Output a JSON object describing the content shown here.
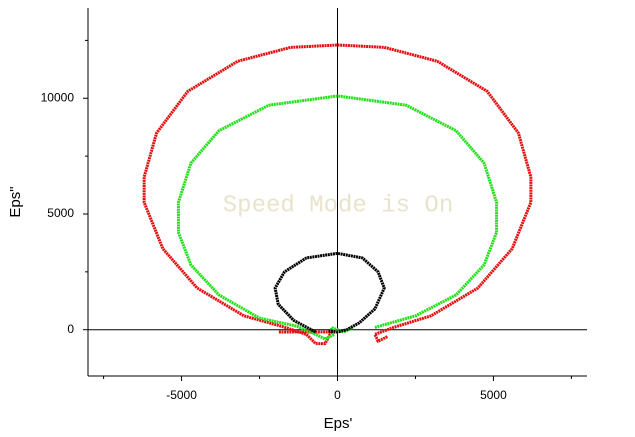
{
  "chart_data": {
    "type": "line",
    "x_label": "Eps'",
    "y_label": "Eps\"",
    "watermark": "Speed Mode is On",
    "xlim": [
      -8000,
      8000
    ],
    "ylim": [
      -2000,
      13900
    ],
    "xticks": [
      -5000,
      0,
      5000
    ],
    "yticks": [
      0,
      5000,
      10000
    ],
    "xminorticks": [
      -7500,
      -2500,
      2500,
      7500
    ],
    "yminorticks": [
      2500,
      7500,
      12500
    ],
    "series": [
      {
        "color": "#e41010",
        "x": [
          1600,
          1300,
          1200,
          1800,
          3000,
          4500,
          5600,
          6200,
          6200,
          5800,
          4800,
          3200,
          1500,
          0,
          -1500,
          -3200,
          -4800,
          -5800,
          -6200,
          -6200,
          -5600,
          -4500,
          -3000,
          -1800,
          -1000,
          -700,
          -400,
          -200,
          -1900
        ],
        "values": [
          -300,
          -500,
          -200,
          100,
          600,
          1800,
          3500,
          5500,
          6600,
          8500,
          10300,
          11600,
          12200,
          12300,
          12200,
          11600,
          10300,
          8500,
          6600,
          5500,
          3500,
          1800,
          600,
          150,
          -200,
          -600,
          -600,
          -100,
          -100
        ]
      },
      {
        "color": "#22e01a",
        "x": [
          1200,
          2500,
          3800,
          4700,
          5100,
          5100,
          4700,
          3800,
          2200,
          0,
          -2200,
          -3800,
          -4700,
          -5100,
          -5100,
          -4700,
          -3800,
          -2500,
          -1300,
          -700,
          -400,
          -100,
          -200,
          200,
          500
        ],
        "values": [
          100,
          600,
          1500,
          2800,
          4200,
          5500,
          7200,
          8600,
          9700,
          10100,
          9700,
          8600,
          7200,
          5500,
          4200,
          2800,
          1500,
          500,
          150,
          -200,
          -400,
          -200,
          100,
          -100,
          100
        ]
      },
      {
        "color": "#000000",
        "x": [
          -700,
          -1400,
          -1900,
          -2000,
          -1700,
          -1000,
          0,
          800,
          1300,
          1500,
          1200,
          700,
          300,
          0,
          -300
        ],
        "values": [
          -100,
          400,
          1100,
          1800,
          2500,
          3100,
          3300,
          3100,
          2500,
          1800,
          900,
          300,
          0,
          -100,
          -50
        ]
      }
    ]
  }
}
